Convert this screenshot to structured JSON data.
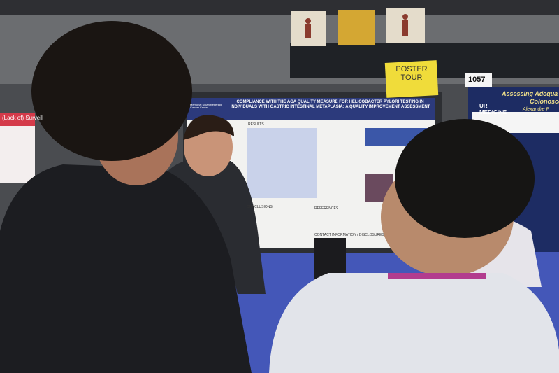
{
  "signs": {
    "poster_tour": "POSTER TOUR",
    "booth_number": "1057"
  },
  "poster": {
    "institution": "Memorial Sloan Kettering Cancer Center",
    "title": "COMPLIANCE WITH THE AGA QUALITY MEASURE FOR HELICOBACTER PYLORI TESTING IN INDIVIDUALS WITH GASTRIC INTESTINAL METAPLASIA: A QUALITY IMPROVEMENT ASSESSMENT",
    "sections": [
      "RESULTS",
      "CONCLUSIONS",
      "REFERENCES",
      "CONTACT INFORMATION / DISCLOSURES"
    ]
  },
  "right_poster": {
    "title_line1": "Assessing Adequa",
    "title_line2": "Colonoscop",
    "logo": "UR MEDICINE",
    "author": "Alexandre P"
  },
  "left_poster": {
    "title": "(Lack of) Surveil"
  }
}
